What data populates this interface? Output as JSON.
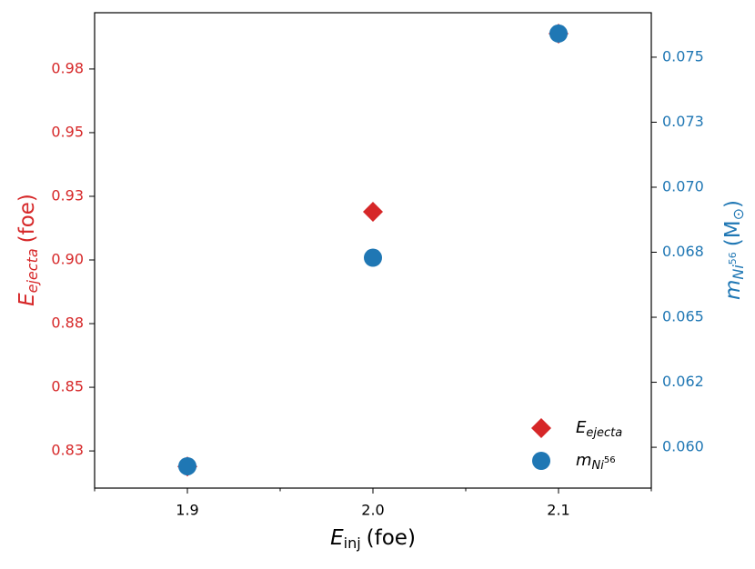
{
  "chart_data": {
    "type": "scatter",
    "xlabel": [
      "E",
      "inj",
      "(foe)"
    ],
    "ylabel": [
      "E",
      "ejecta",
      "(foe)"
    ],
    "y2label": [
      "m",
      "Ni",
      "56",
      "(M",
      "⊙",
      ")"
    ],
    "x": [
      1.9,
      2.0,
      2.1
    ],
    "xlim": [
      1.85,
      2.15
    ],
    "xticks": [
      1.9,
      {
        "value": 2.0,
        "label": "2.0"
      },
      2.1
    ],
    "xminorticks": [
      1.85,
      1.95,
      2.05,
      2.15
    ],
    "ylim": [
      0.8104,
      0.9971
    ],
    "yticks": [
      {
        "value": 0.825,
        "label": "0.83"
      },
      {
        "value": 0.85,
        "label": "0.85"
      },
      {
        "value": 0.875,
        "label": "0.88"
      },
      {
        "value": 0.9,
        "label": "0.90"
      },
      {
        "value": 0.925,
        "label": "0.93"
      },
      {
        "value": 0.95,
        "label": "0.95"
      },
      {
        "value": 0.975,
        "label": "0.98"
      }
    ],
    "y2lim": [
      0.05843,
      0.07671
    ],
    "y2ticks": [
      {
        "value": 0.06,
        "label": "0.060"
      },
      {
        "value": 0.0625,
        "label": "0.062"
      },
      {
        "value": 0.065,
        "label": "0.065"
      },
      {
        "value": 0.0675,
        "label": "0.068"
      },
      {
        "value": 0.07,
        "label": "0.070"
      },
      {
        "value": 0.0725,
        "label": "0.073"
      },
      {
        "value": 0.075,
        "label": "0.075"
      }
    ],
    "legend": "lower right",
    "series": [
      {
        "name": [
          "E",
          "ejecta"
        ],
        "color": "#d62728",
        "marker": "diamond",
        "values": [
          0.8189,
          0.9189,
          0.9889
        ]
      },
      {
        "name": [
          "m",
          "Ni",
          "56"
        ],
        "color": "#1f77b4",
        "marker": "circle",
        "axis": "y2",
        "values": [
          0.05927,
          0.06729,
          0.07591
        ]
      }
    ]
  }
}
